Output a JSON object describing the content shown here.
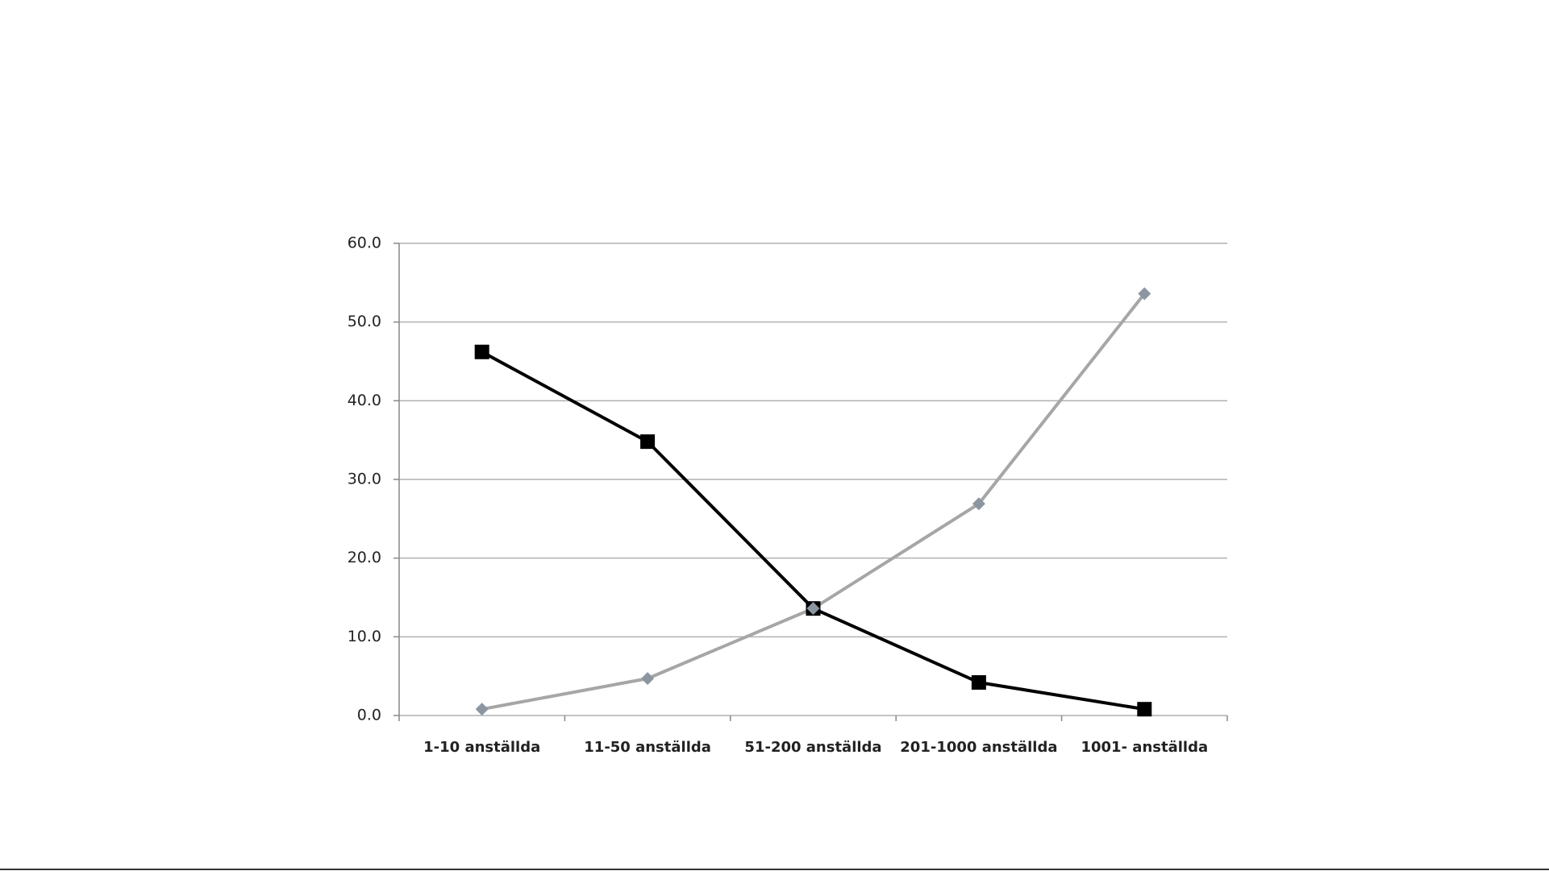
{
  "chart_data": {
    "type": "line",
    "categories": [
      "1-10 anställda",
      "11-50 anställda",
      "51-200 anställda",
      "201-1000 anställda",
      "1001- anställda"
    ],
    "series": [
      {
        "color": "#000000",
        "marker": "square",
        "values": [
          46.2,
          34.8,
          13.6,
          4.2,
          0.8
        ]
      },
      {
        "color": "#a6a6a6",
        "marker_color": "#8c96a0",
        "marker": "diamond",
        "values": [
          0.8,
          4.7,
          13.6,
          26.9,
          53.6
        ]
      }
    ],
    "ylim": [
      0,
      60
    ],
    "yticks": [
      {
        "value": 0,
        "label": "0.0"
      },
      {
        "value": 10,
        "label": "10.0"
      },
      {
        "value": 20,
        "label": "20.0"
      },
      {
        "value": 30,
        "label": "30.0"
      },
      {
        "value": 40,
        "label": "40.0"
      },
      {
        "value": 50,
        "label": "50.0"
      },
      {
        "value": 60,
        "label": "60.0"
      }
    ],
    "grid": true
  }
}
